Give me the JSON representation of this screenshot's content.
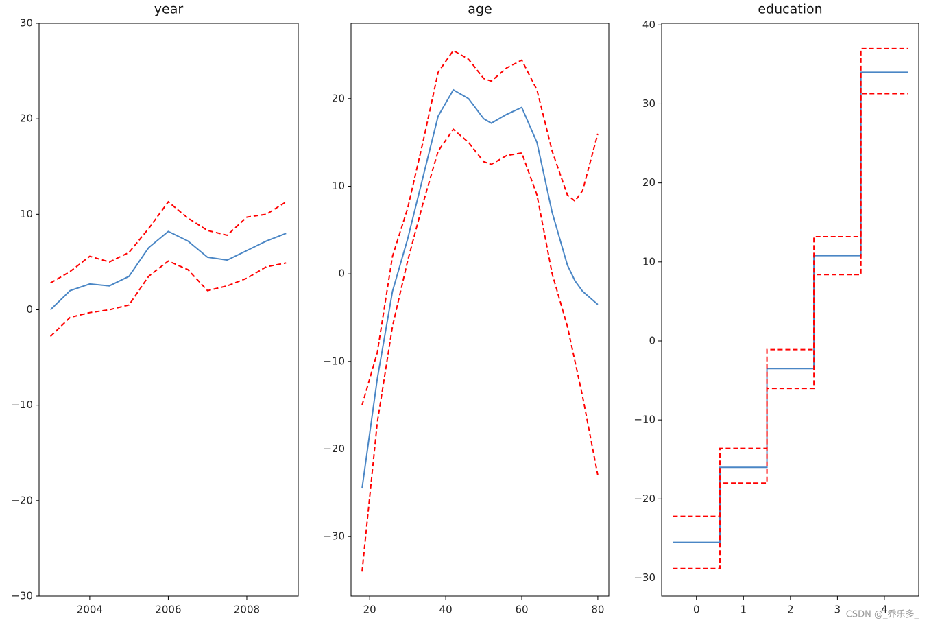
{
  "chart_data": [
    {
      "type": "line",
      "title": "year",
      "x": [
        2003,
        2003.5,
        2004,
        2004.5,
        2005,
        2005.5,
        2006,
        2006.5,
        2007,
        2007.5,
        2008,
        2008.5,
        2009
      ],
      "series": [
        {
          "color": "#4a86c5",
          "dash": false,
          "values": [
            0,
            2,
            2.7,
            2.5,
            3.5,
            6.5,
            8.2,
            7.2,
            5.5,
            5.2,
            6.2,
            7.2,
            8
          ]
        },
        {
          "color": "#ff0000",
          "dash": true,
          "values": [
            2.8,
            4,
            5.6,
            5,
            6,
            8.5,
            11.3,
            9.6,
            8.3,
            7.8,
            9.7,
            10,
            11.3
          ]
        },
        {
          "color": "#ff0000",
          "dash": true,
          "values": [
            -2.8,
            -0.8,
            -0.3,
            0,
            0.5,
            3.5,
            5.1,
            4.2,
            2,
            2.5,
            3.3,
            4.5,
            4.9
          ]
        }
      ],
      "xlim": [
        2002.71,
        2009.31
      ],
      "xticks": [
        2004,
        2006,
        2008
      ],
      "ylim": [
        -30,
        30
      ],
      "yticks": [
        {
          "value": -30,
          "label": "−30"
        },
        {
          "value": -20,
          "label": "−20"
        },
        {
          "value": -10,
          "label": "−10"
        },
        0,
        10,
        20,
        30
      ]
    },
    {
      "type": "line",
      "title": "age",
      "x": [
        18,
        22,
        26,
        30,
        34,
        38,
        42,
        46,
        50,
        52,
        56,
        60,
        64,
        68,
        72,
        74,
        76,
        80
      ],
      "series": [
        {
          "color": "#4a86c5",
          "dash": false,
          "values": [
            -24.5,
            -12,
            -2,
            4,
            11,
            18,
            21,
            20,
            17.7,
            17.2,
            18.2,
            19,
            15,
            7,
            1,
            -0.8,
            -2,
            -3.5
          ]
        },
        {
          "color": "#ff0000",
          "dash": true,
          "values": [
            -15,
            -9,
            2,
            7.5,
            15,
            23,
            25.5,
            24.5,
            22.3,
            22,
            23.5,
            24.4,
            21,
            14,
            9,
            8.3,
            9.5,
            16
          ]
        },
        {
          "color": "#ff0000",
          "dash": true,
          "values": [
            -34,
            -17,
            -6,
            1.5,
            8,
            14,
            16.5,
            15,
            12.8,
            12.5,
            13.5,
            13.8,
            9,
            0,
            -6,
            -10,
            -14,
            -23
          ]
        }
      ],
      "xlim": [
        15.1,
        82.9
      ],
      "xticks": [
        20,
        40,
        60,
        80
      ],
      "ylim": [
        -36.8,
        28.6
      ],
      "yticks": [
        {
          "value": -30,
          "label": "−30"
        },
        {
          "value": -20,
          "label": "−20"
        },
        {
          "value": -10,
          "label": "−10"
        },
        0,
        10,
        20
      ]
    },
    {
      "type": "line",
      "title": "education",
      "x": [
        -0.5,
        0.5,
        0.5,
        1.5,
        1.5,
        2.5,
        2.5,
        3.5,
        3.5,
        4.5
      ],
      "series": [
        {
          "color": "#4a86c5",
          "dash": false,
          "values": [
            -25.5,
            -25.5,
            -16,
            -16,
            -3.5,
            -3.5,
            10.8,
            10.8,
            34,
            34
          ]
        },
        {
          "color": "#ff0000",
          "dash": true,
          "values": [
            -22.2,
            -22.2,
            -13.6,
            -13.6,
            -1.1,
            -1.1,
            13.2,
            13.2,
            37,
            37
          ]
        },
        {
          "color": "#ff0000",
          "dash": true,
          "values": [
            -28.8,
            -28.8,
            -18,
            -18,
            -6,
            -6,
            8.4,
            8.4,
            31.3,
            31.3
          ]
        }
      ],
      "xlim": [
        -0.74,
        4.73
      ],
      "xticks": [
        0,
        1,
        2,
        3,
        4
      ],
      "ylim": [
        -32.3,
        40.2
      ],
      "yticks": [
        {
          "value": -30,
          "label": "−30"
        },
        {
          "value": -20,
          "label": "−20"
        },
        {
          "value": -10,
          "label": "−10"
        },
        0,
        10,
        20,
        30,
        40
      ]
    }
  ],
  "watermark": "CSDN @_乔乐多_"
}
